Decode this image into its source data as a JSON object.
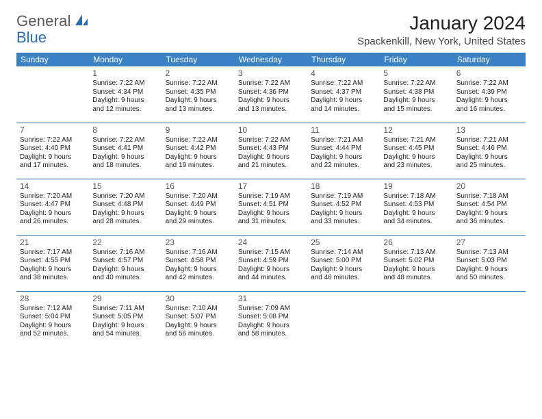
{
  "logo": {
    "text1": "General",
    "text2": "Blue"
  },
  "title": "January 2024",
  "location": "Spackenkill, New York, United States",
  "colors": {
    "header_bg": "#3b82c4",
    "header_text": "#ffffff",
    "rule": "#2b6cb0",
    "logo_gray": "#5a5a5a",
    "logo_blue": "#2b6cb0"
  },
  "days_of_week": [
    "Sunday",
    "Monday",
    "Tuesday",
    "Wednesday",
    "Thursday",
    "Friday",
    "Saturday"
  ],
  "weeks": [
    [
      {
        "num": "",
        "lines": []
      },
      {
        "num": "1",
        "lines": [
          "Sunrise: 7:22 AM",
          "Sunset: 4:34 PM",
          "Daylight: 9 hours",
          "and 12 minutes."
        ]
      },
      {
        "num": "2",
        "lines": [
          "Sunrise: 7:22 AM",
          "Sunset: 4:35 PM",
          "Daylight: 9 hours",
          "and 13 minutes."
        ]
      },
      {
        "num": "3",
        "lines": [
          "Sunrise: 7:22 AM",
          "Sunset: 4:36 PM",
          "Daylight: 9 hours",
          "and 13 minutes."
        ]
      },
      {
        "num": "4",
        "lines": [
          "Sunrise: 7:22 AM",
          "Sunset: 4:37 PM",
          "Daylight: 9 hours",
          "and 14 minutes."
        ]
      },
      {
        "num": "5",
        "lines": [
          "Sunrise: 7:22 AM",
          "Sunset: 4:38 PM",
          "Daylight: 9 hours",
          "and 15 minutes."
        ]
      },
      {
        "num": "6",
        "lines": [
          "Sunrise: 7:22 AM",
          "Sunset: 4:39 PM",
          "Daylight: 9 hours",
          "and 16 minutes."
        ]
      }
    ],
    [
      {
        "num": "7",
        "lines": [
          "Sunrise: 7:22 AM",
          "Sunset: 4:40 PM",
          "Daylight: 9 hours",
          "and 17 minutes."
        ]
      },
      {
        "num": "8",
        "lines": [
          "Sunrise: 7:22 AM",
          "Sunset: 4:41 PM",
          "Daylight: 9 hours",
          "and 18 minutes."
        ]
      },
      {
        "num": "9",
        "lines": [
          "Sunrise: 7:22 AM",
          "Sunset: 4:42 PM",
          "Daylight: 9 hours",
          "and 19 minutes."
        ]
      },
      {
        "num": "10",
        "lines": [
          "Sunrise: 7:22 AM",
          "Sunset: 4:43 PM",
          "Daylight: 9 hours",
          "and 21 minutes."
        ]
      },
      {
        "num": "11",
        "lines": [
          "Sunrise: 7:21 AM",
          "Sunset: 4:44 PM",
          "Daylight: 9 hours",
          "and 22 minutes."
        ]
      },
      {
        "num": "12",
        "lines": [
          "Sunrise: 7:21 AM",
          "Sunset: 4:45 PM",
          "Daylight: 9 hours",
          "and 23 minutes."
        ]
      },
      {
        "num": "13",
        "lines": [
          "Sunrise: 7:21 AM",
          "Sunset: 4:46 PM",
          "Daylight: 9 hours",
          "and 25 minutes."
        ]
      }
    ],
    [
      {
        "num": "14",
        "lines": [
          "Sunrise: 7:20 AM",
          "Sunset: 4:47 PM",
          "Daylight: 9 hours",
          "and 26 minutes."
        ]
      },
      {
        "num": "15",
        "lines": [
          "Sunrise: 7:20 AM",
          "Sunset: 4:48 PM",
          "Daylight: 9 hours",
          "and 28 minutes."
        ]
      },
      {
        "num": "16",
        "lines": [
          "Sunrise: 7:20 AM",
          "Sunset: 4:49 PM",
          "Daylight: 9 hours",
          "and 29 minutes."
        ]
      },
      {
        "num": "17",
        "lines": [
          "Sunrise: 7:19 AM",
          "Sunset: 4:51 PM",
          "Daylight: 9 hours",
          "and 31 minutes."
        ]
      },
      {
        "num": "18",
        "lines": [
          "Sunrise: 7:19 AM",
          "Sunset: 4:52 PM",
          "Daylight: 9 hours",
          "and 33 minutes."
        ]
      },
      {
        "num": "19",
        "lines": [
          "Sunrise: 7:18 AM",
          "Sunset: 4:53 PM",
          "Daylight: 9 hours",
          "and 34 minutes."
        ]
      },
      {
        "num": "20",
        "lines": [
          "Sunrise: 7:18 AM",
          "Sunset: 4:54 PM",
          "Daylight: 9 hours",
          "and 36 minutes."
        ]
      }
    ],
    [
      {
        "num": "21",
        "lines": [
          "Sunrise: 7:17 AM",
          "Sunset: 4:55 PM",
          "Daylight: 9 hours",
          "and 38 minutes."
        ]
      },
      {
        "num": "22",
        "lines": [
          "Sunrise: 7:16 AM",
          "Sunset: 4:57 PM",
          "Daylight: 9 hours",
          "and 40 minutes."
        ]
      },
      {
        "num": "23",
        "lines": [
          "Sunrise: 7:16 AM",
          "Sunset: 4:58 PM",
          "Daylight: 9 hours",
          "and 42 minutes."
        ]
      },
      {
        "num": "24",
        "lines": [
          "Sunrise: 7:15 AM",
          "Sunset: 4:59 PM",
          "Daylight: 9 hours",
          "and 44 minutes."
        ]
      },
      {
        "num": "25",
        "lines": [
          "Sunrise: 7:14 AM",
          "Sunset: 5:00 PM",
          "Daylight: 9 hours",
          "and 46 minutes."
        ]
      },
      {
        "num": "26",
        "lines": [
          "Sunrise: 7:13 AM",
          "Sunset: 5:02 PM",
          "Daylight: 9 hours",
          "and 48 minutes."
        ]
      },
      {
        "num": "27",
        "lines": [
          "Sunrise: 7:13 AM",
          "Sunset: 5:03 PM",
          "Daylight: 9 hours",
          "and 50 minutes."
        ]
      }
    ],
    [
      {
        "num": "28",
        "lines": [
          "Sunrise: 7:12 AM",
          "Sunset: 5:04 PM",
          "Daylight: 9 hours",
          "and 52 minutes."
        ]
      },
      {
        "num": "29",
        "lines": [
          "Sunrise: 7:11 AM",
          "Sunset: 5:05 PM",
          "Daylight: 9 hours",
          "and 54 minutes."
        ]
      },
      {
        "num": "30",
        "lines": [
          "Sunrise: 7:10 AM",
          "Sunset: 5:07 PM",
          "Daylight: 9 hours",
          "and 56 minutes."
        ]
      },
      {
        "num": "31",
        "lines": [
          "Sunrise: 7:09 AM",
          "Sunset: 5:08 PM",
          "Daylight: 9 hours",
          "and 58 minutes."
        ]
      },
      {
        "num": "",
        "lines": []
      },
      {
        "num": "",
        "lines": []
      },
      {
        "num": "",
        "lines": []
      }
    ]
  ]
}
